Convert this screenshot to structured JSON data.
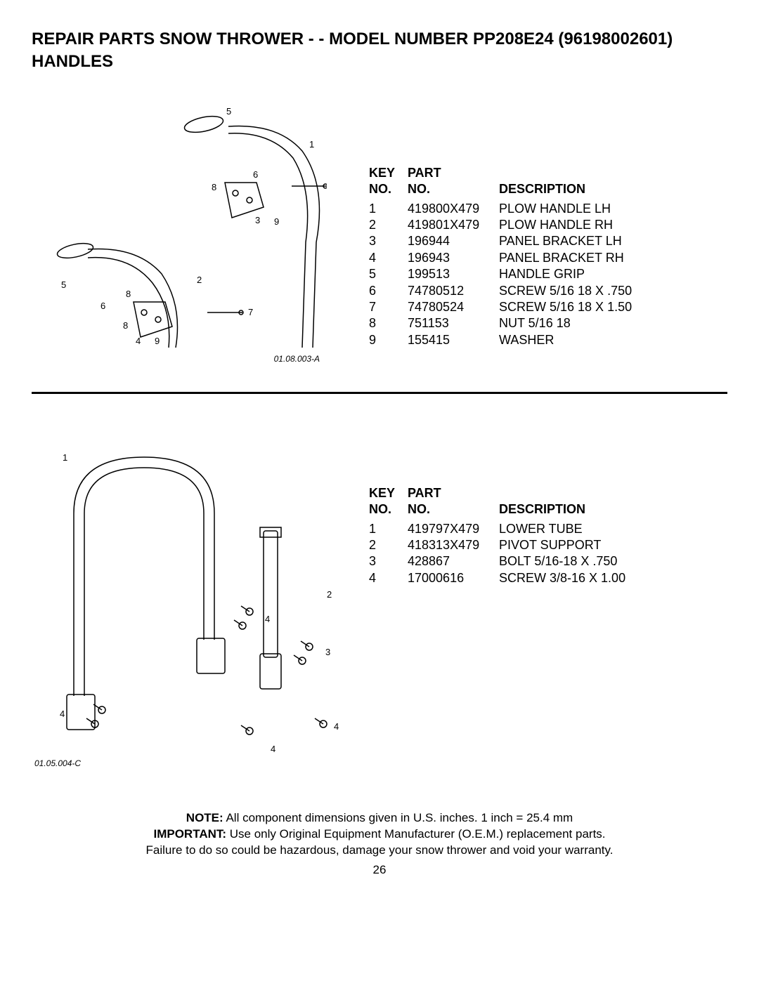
{
  "title_line1": "REPAIR PARTS  SNOW THROWER - - MODEL NUMBER  PP208E24 (96198002601)",
  "title_line2": "HANDLES",
  "headers": {
    "key1": "KEY",
    "key2": "NO.",
    "part1": "PART",
    "part2": "NO.",
    "desc": "DESCRIPTION"
  },
  "section1": {
    "diagram_code": "01.08.003-A",
    "rows": [
      {
        "key": "1",
        "part": "419800X479",
        "desc": "PLOW HANDLE LH"
      },
      {
        "key": "2",
        "part": "419801X479",
        "desc": "PLOW HANDLE RH"
      },
      {
        "key": "3",
        "part": "196944",
        "desc": "PANEL BRACKET LH"
      },
      {
        "key": "4",
        "part": "196943",
        "desc": "PANEL BRACKET RH"
      },
      {
        "key": "5",
        "part": "199513",
        "desc": "HANDLE GRIP"
      },
      {
        "key": "6",
        "part": "74780512",
        "desc": "SCREW 5/16  18 X .750"
      },
      {
        "key": "7",
        "part": "74780524",
        "desc": "SCREW 5/16  18 X 1.50"
      },
      {
        "key": "8",
        "part": "751153",
        "desc": "NUT 5/16  18"
      },
      {
        "key": "9",
        "part": "155415",
        "desc": "WASHER"
      }
    ]
  },
  "section2": {
    "diagram_code": "01.05.004-C",
    "rows": [
      {
        "key": "1",
        "part": "419797X479",
        "desc": "LOWER TUBE"
      },
      {
        "key": "2",
        "part": "418313X479",
        "desc": "PIVOT SUPPORT"
      },
      {
        "key": "3",
        "part": "428867",
        "desc": "BOLT 5/16-18 X .750"
      },
      {
        "key": "4",
        "part": "17000616",
        "desc": "SCREW 3/8-16 X 1.00"
      }
    ]
  },
  "footer": {
    "note_label": "NOTE:",
    "note_text": "  All component dimensions given in U.S. inches.    1 inch = 25.4 mm",
    "important_label": "IMPORTANT:",
    "important_text": " Use only Original Equipment Manufacturer (O.E.M.) replacement parts.",
    "warning": "Failure to do so could be hazardous, damage your snow thrower and void your warranty."
  },
  "page_number": "26"
}
